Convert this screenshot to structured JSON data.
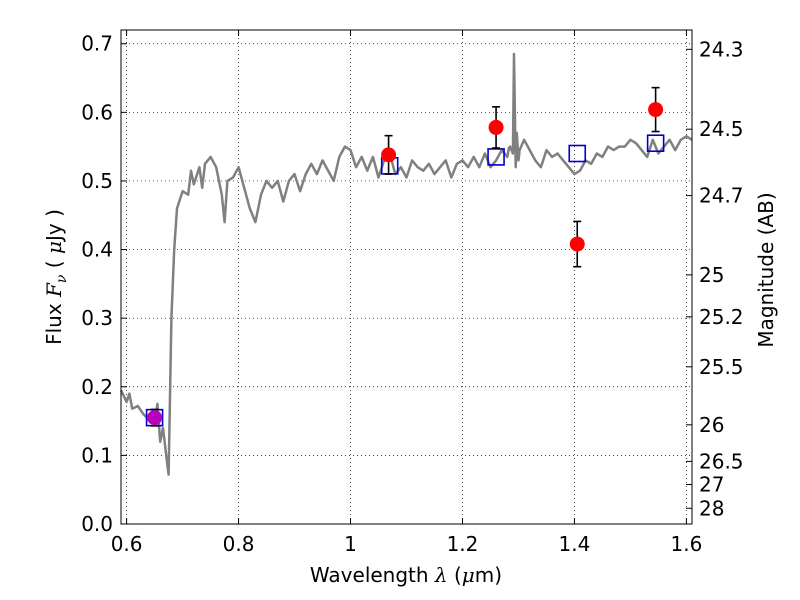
{
  "chart_data": {
    "type": "scatter",
    "title": "",
    "xlabel": {
      "prefix": "Wavelength  ",
      "symbol": "λ",
      "unit_open": " (",
      "unit_sym": "μ",
      "unit_rest": "m)"
    },
    "ylabel": {
      "prefix": "Flux  ",
      "symbol": "F",
      "sub": "ν",
      "unit_open": "  ( ",
      "unit_sym": "μ",
      "unit_rest": "Jy )"
    },
    "y2label": "Magnitude (AB)",
    "xlim": [
      0.59,
      1.61
    ],
    "ylim": [
      0.0,
      0.72
    ],
    "grid": true,
    "x_ticks": [
      {
        "v": 0.6,
        "label": "0.6"
      },
      {
        "v": 0.8,
        "label": "0.8"
      },
      {
        "v": 1.0,
        "label": "1"
      },
      {
        "v": 1.2,
        "label": "1.2"
      },
      {
        "v": 1.4,
        "label": "1.4"
      },
      {
        "v": 1.6,
        "label": "1.6"
      }
    ],
    "y_ticks": [
      {
        "v": 0.0,
        "label": "0.0"
      },
      {
        "v": 0.1,
        "label": "0.1"
      },
      {
        "v": 0.2,
        "label": "0.2"
      },
      {
        "v": 0.3,
        "label": "0.3"
      },
      {
        "v": 0.4,
        "label": "0.4"
      },
      {
        "v": 0.5,
        "label": "0.5"
      },
      {
        "v": 0.6,
        "label": "0.6"
      },
      {
        "v": 0.7,
        "label": "0.7"
      }
    ],
    "y2_ticks": [
      {
        "mag": 24.3,
        "label": "24.3"
      },
      {
        "mag": 24.5,
        "label": "24.5"
      },
      {
        "mag": 24.7,
        "label": "24.7"
      },
      {
        "mag": 25.0,
        "label": "25"
      },
      {
        "mag": 25.2,
        "label": "25.2"
      },
      {
        "mag": 25.5,
        "label": "25.5"
      },
      {
        "mag": 26.0,
        "label": "26"
      },
      {
        "mag": 26.5,
        "label": "26.5"
      },
      {
        "mag": 27.0,
        "label": "27"
      },
      {
        "mag": 28.0,
        "label": "28"
      }
    ],
    "model_spectrum": {
      "color": "#808080",
      "x": [
        0.59,
        0.6,
        0.605,
        0.61,
        0.62,
        0.63,
        0.64,
        0.645,
        0.65,
        0.655,
        0.66,
        0.665,
        0.67,
        0.675,
        0.68,
        0.685,
        0.69,
        0.7,
        0.71,
        0.715,
        0.72,
        0.73,
        0.735,
        0.74,
        0.75,
        0.76,
        0.77,
        0.775,
        0.78,
        0.79,
        0.8,
        0.81,
        0.82,
        0.83,
        0.84,
        0.85,
        0.86,
        0.87,
        0.88,
        0.89,
        0.9,
        0.91,
        0.92,
        0.93,
        0.94,
        0.95,
        0.96,
        0.97,
        0.98,
        0.99,
        1.0,
        1.01,
        1.02,
        1.03,
        1.04,
        1.05,
        1.06,
        1.07,
        1.08,
        1.09,
        1.1,
        1.11,
        1.12,
        1.13,
        1.14,
        1.15,
        1.16,
        1.17,
        1.18,
        1.19,
        1.2,
        1.21,
        1.22,
        1.23,
        1.24,
        1.25,
        1.26,
        1.27,
        1.28,
        1.285,
        1.29,
        1.295,
        1.3,
        1.31,
        1.32,
        1.33,
        1.34,
        1.35,
        1.36,
        1.37,
        1.38,
        1.39,
        1.4,
        1.41,
        1.42,
        1.43,
        1.44,
        1.45,
        1.46,
        1.47,
        1.48,
        1.49,
        1.5,
        1.51,
        1.52,
        1.53,
        1.54,
        1.55,
        1.56,
        1.57,
        1.58,
        1.59,
        1.6,
        1.61
      ],
      "y": [
        0.195,
        0.178,
        0.19,
        0.168,
        0.172,
        0.16,
        0.152,
        0.162,
        0.145,
        0.175,
        0.12,
        0.14,
        0.105,
        0.072,
        0.3,
        0.4,
        0.46,
        0.485,
        0.48,
        0.515,
        0.495,
        0.52,
        0.49,
        0.525,
        0.535,
        0.52,
        0.48,
        0.44,
        0.5,
        0.505,
        0.52,
        0.49,
        0.46,
        0.44,
        0.48,
        0.5,
        0.49,
        0.5,
        0.47,
        0.5,
        0.51,
        0.485,
        0.51,
        0.525,
        0.51,
        0.53,
        0.515,
        0.5,
        0.535,
        0.55,
        0.545,
        0.52,
        0.535,
        0.515,
        0.535,
        0.505,
        0.53,
        0.54,
        0.51,
        0.52,
        0.505,
        0.53,
        0.52,
        0.515,
        0.525,
        0.51,
        0.52,
        0.53,
        0.505,
        0.525,
        0.53,
        0.52,
        0.535,
        0.52,
        0.54,
        0.52,
        0.53,
        0.545,
        0.535,
        0.55,
        0.54,
        0.52,
        0.53,
        0.56,
        0.545,
        0.53,
        0.52,
        0.545,
        0.535,
        0.54,
        0.53,
        0.52,
        0.51,
        0.515,
        0.53,
        0.525,
        0.54,
        0.535,
        0.55,
        0.545,
        0.55,
        0.55,
        0.56,
        0.555,
        0.545,
        0.535,
        0.56,
        0.54,
        0.55,
        0.56,
        0.545,
        0.56,
        0.565,
        0.56
      ]
    },
    "spike": {
      "x": [
        1.283,
        1.292,
        1.297,
        1.302
      ],
      "y": [
        0.548,
        0.685,
        0.57,
        0.545
      ]
    },
    "model_photometry": {
      "marker": "open-square",
      "color": "#0000cc",
      "points": [
        {
          "x": 0.65,
          "y": 0.155
        },
        {
          "x": 1.07,
          "y": 0.522
        },
        {
          "x": 1.26,
          "y": 0.535
        },
        {
          "x": 1.405,
          "y": 0.54
        },
        {
          "x": 1.545,
          "y": 0.555
        }
      ]
    },
    "observed": {
      "marker": "filled-circle",
      "color": "#ff0000",
      "errorbar_color": "#000000",
      "points": [
        {
          "x": 1.068,
          "y": 0.538,
          "err": 0.028
        },
        {
          "x": 1.26,
          "y": 0.578,
          "err": 0.03
        },
        {
          "x": 1.405,
          "y": 0.408,
          "err": 0.033
        },
        {
          "x": 1.545,
          "y": 0.604,
          "err": 0.032
        }
      ]
    },
    "observed_other": {
      "marker": "filled-circle",
      "color": "#bb00bb",
      "points": [
        {
          "x": 0.65,
          "y": 0.155,
          "err": 0.012
        }
      ]
    }
  }
}
